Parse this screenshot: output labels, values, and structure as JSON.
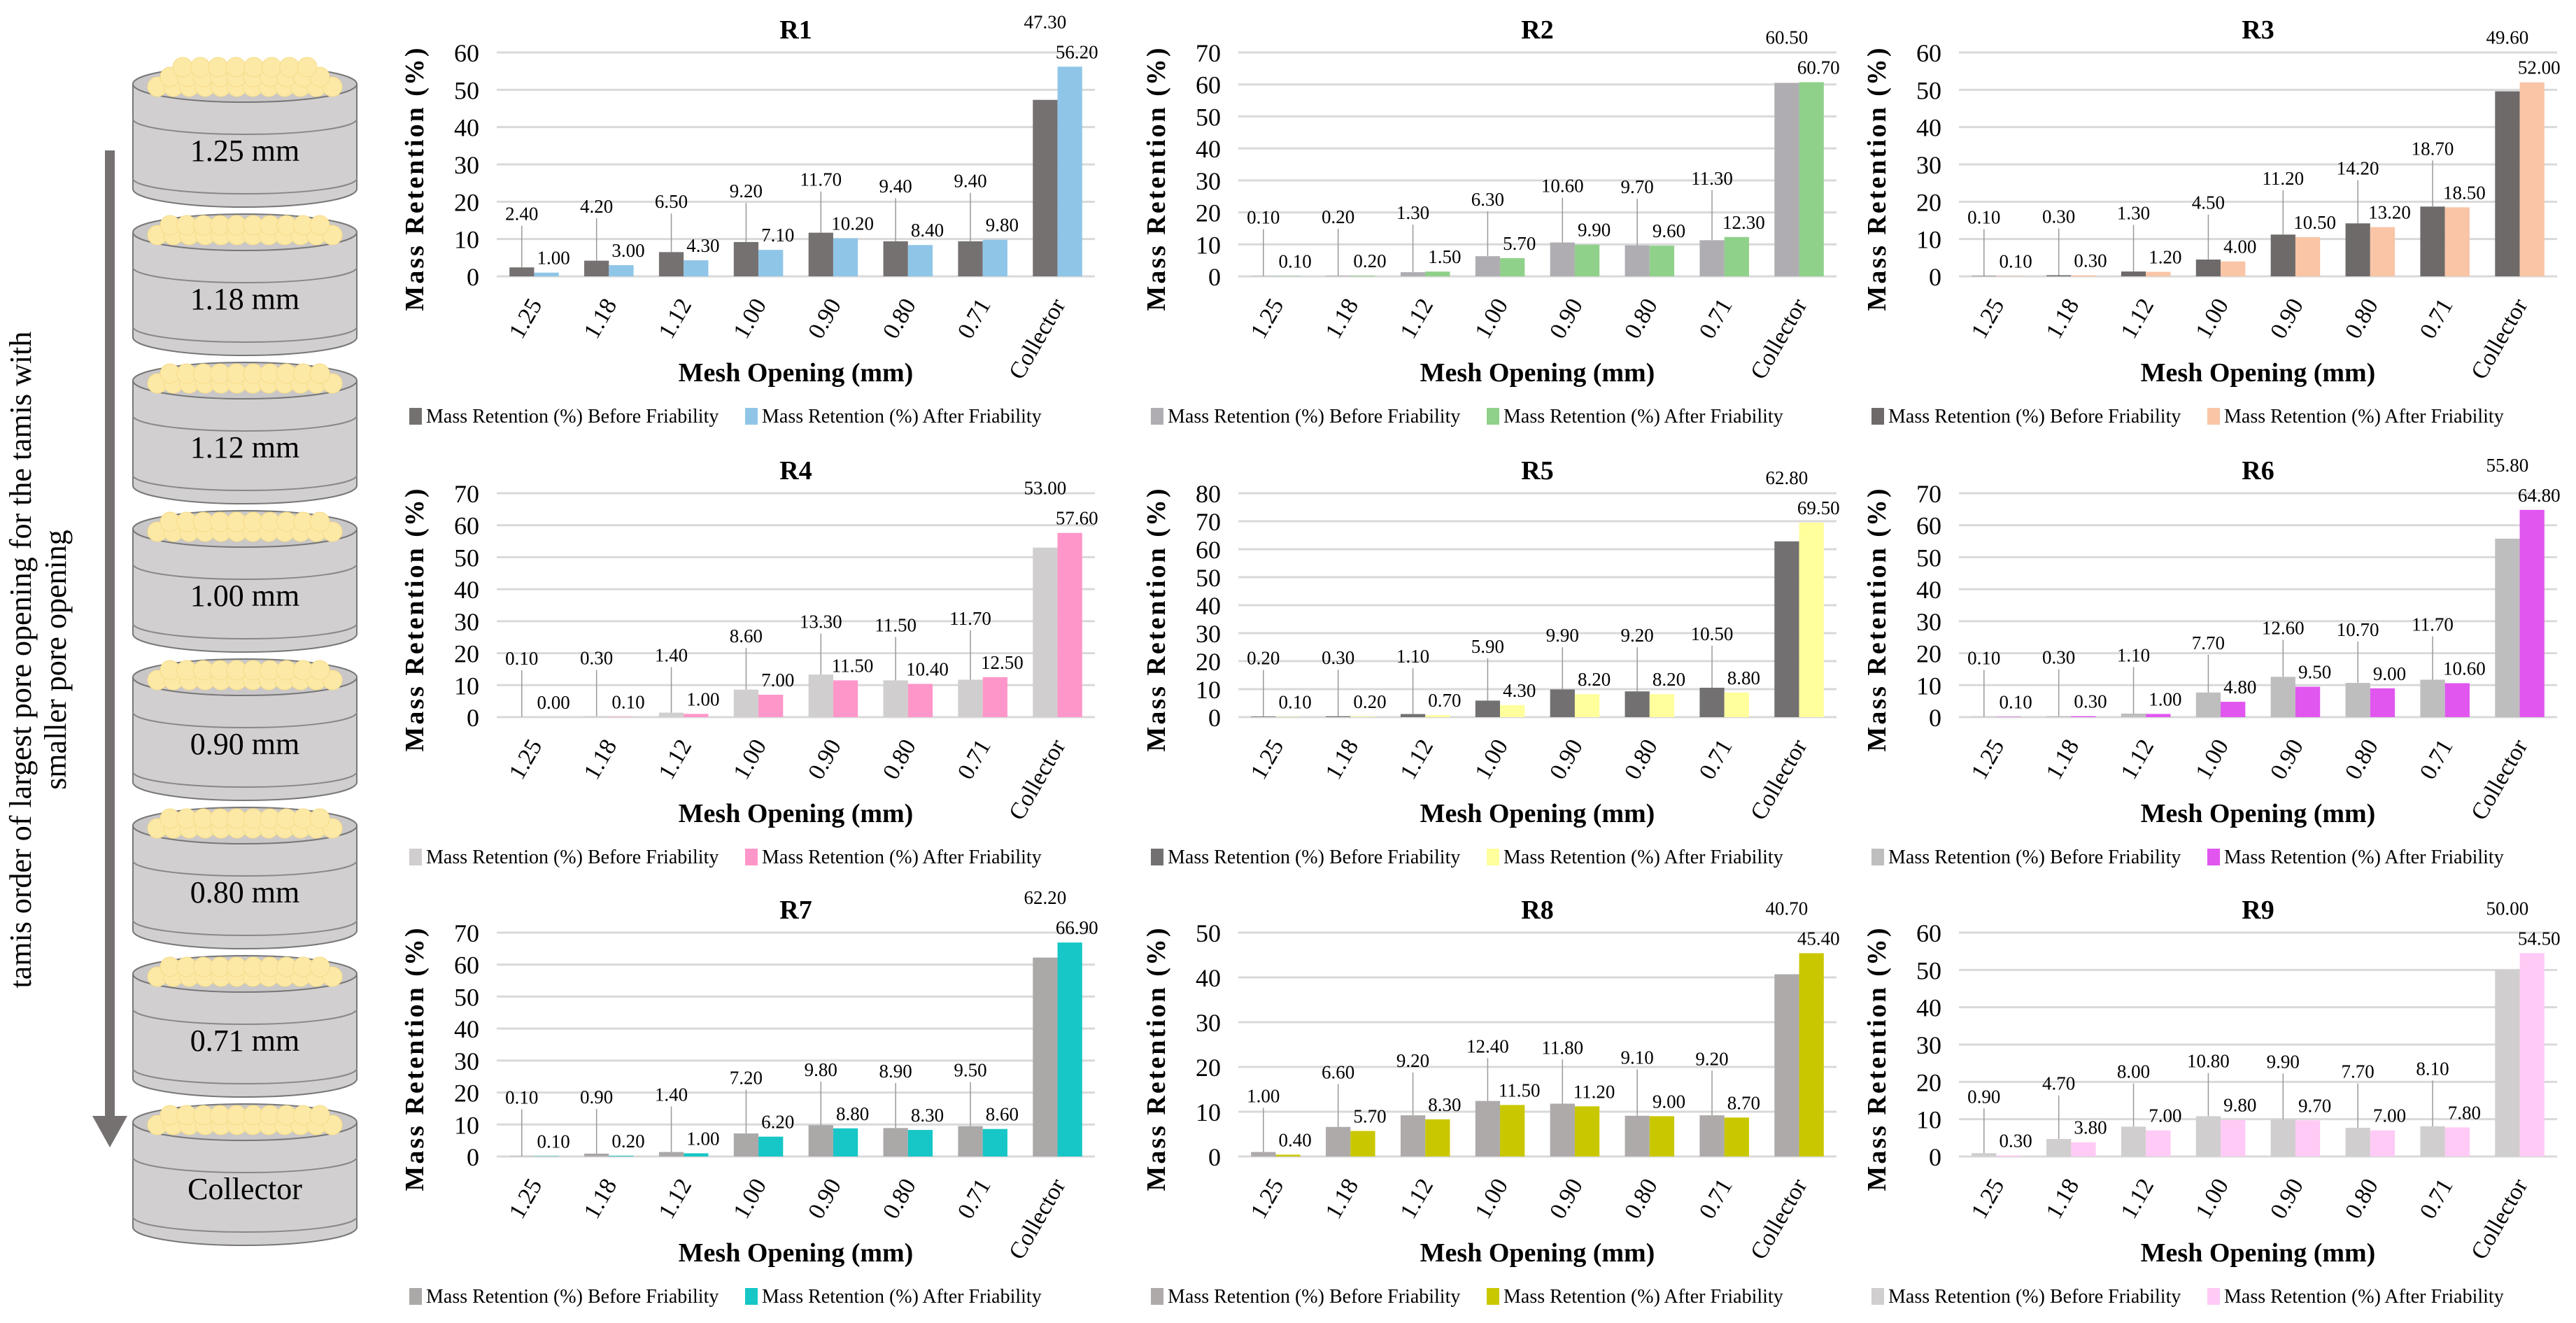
{
  "diagram": {
    "side_label_line1": "tamis order of largest pore opening for the tamis with",
    "side_label_line2": "smaller pore opening",
    "sieves": [
      "1.25 mm",
      "1.18 mm",
      "1.12 mm",
      "1.00 mm",
      "0.90 mm",
      "0.80 mm",
      "0.71 mm",
      "Collector"
    ],
    "sieve_color": "#d1cfd0",
    "bead_color": "#fde9a6",
    "arrow_color": "#767171"
  },
  "chart_data": [
    {
      "type": "bar",
      "title": "R1",
      "xlabel": "Mesh Opening (mm)",
      "ylabel": "Mass Retention (%)",
      "ylim": [
        0,
        60
      ],
      "yticks": [
        0,
        10,
        20,
        30,
        40,
        50,
        60
      ],
      "grid": true,
      "legend": "bottom",
      "categories": [
        "1.25",
        "1.18",
        "1.12",
        "1.00",
        "0.90",
        "0.80",
        "0.71",
        "Collector"
      ],
      "series": [
        {
          "name": "Mass Retention (%) Before Friability",
          "color": "#767171",
          "values": [
            2.4,
            4.2,
            6.5,
            9.2,
            11.7,
            9.4,
            9.4,
            47.3
          ],
          "labels": [
            "2.40",
            "4.20",
            "6.50",
            "9.20",
            "11.70",
            "9.40",
            "9.40",
            "47.30"
          ]
        },
        {
          "name": "Mass Retention (%) After Friability",
          "color": "#8fc6e8",
          "values": [
            1.0,
            3.0,
            4.3,
            7.1,
            10.2,
            8.4,
            9.8,
            56.2
          ],
          "labels": [
            "1.00",
            "3.00",
            "4.30",
            "7.10",
            "10.20",
            "8.40",
            "9.80",
            "56.20"
          ]
        }
      ]
    },
    {
      "type": "bar",
      "title": "R2",
      "xlabel": "Mesh Opening (mm)",
      "ylabel": "Mass Retention (%)",
      "ylim": [
        0,
        70
      ],
      "yticks": [
        0,
        10,
        20,
        30,
        40,
        50,
        60,
        70
      ],
      "grid": true,
      "legend": "bottom",
      "categories": [
        "1.25",
        "1.18",
        "1.12",
        "1.00",
        "0.90",
        "0.80",
        "0.71",
        "Collector"
      ],
      "series": [
        {
          "name": "Mass Retention (%) Before Friability",
          "color": "#b0adb2",
          "values": [
            0.1,
            0.2,
            1.3,
            6.3,
            10.6,
            9.7,
            11.3,
            60.5
          ],
          "labels": [
            "0.10",
            "0.20",
            "1.30",
            "6.30",
            "10.60",
            "9.70",
            "11.30",
            "60.50"
          ]
        },
        {
          "name": "Mass Retention (%) After Friability",
          "color": "#8fd18a",
          "values": [
            0.1,
            0.2,
            1.5,
            5.7,
            9.9,
            9.6,
            12.3,
            60.7
          ],
          "labels": [
            "0.10",
            "0.20",
            "1.50",
            "5.70",
            "9.90",
            "9.60",
            "12.30",
            "60.70"
          ]
        }
      ]
    },
    {
      "type": "bar",
      "title": "R3",
      "xlabel": "Mesh Opening (mm)",
      "ylabel": "Mass Retention (%)",
      "ylim": [
        0,
        60
      ],
      "yticks": [
        0,
        10,
        20,
        30,
        40,
        50,
        60
      ],
      "grid": true,
      "legend": "bottom",
      "categories": [
        "1.25",
        "1.18",
        "1.12",
        "1.00",
        "0.90",
        "0.80",
        "0.71",
        "Collector"
      ],
      "series": [
        {
          "name": "Mass Retention (%) Before Friability",
          "color": "#6e6a6a",
          "values": [
            0.1,
            0.3,
            1.3,
            4.5,
            11.2,
            14.2,
            18.7,
            49.6
          ],
          "labels": [
            "0.10",
            "0.30",
            "1.30",
            "4.50",
            "11.20",
            "14.20",
            "18.70",
            "49.60"
          ]
        },
        {
          "name": "Mass Retention (%) After Friability",
          "color": "#f9c5a6",
          "values": [
            0.1,
            0.3,
            1.2,
            4.0,
            10.5,
            13.2,
            18.5,
            52.0
          ],
          "labels": [
            "0.10",
            "0.30",
            "1.20",
            "4.00",
            "10.50",
            "13.20",
            "18.50",
            "52.00"
          ]
        }
      ]
    },
    {
      "type": "bar",
      "title": "R4",
      "xlabel": "Mesh Opening (mm)",
      "ylabel": "Mass Retention (%)",
      "ylim": [
        0,
        70
      ],
      "yticks": [
        0,
        10,
        20,
        30,
        40,
        50,
        60,
        70
      ],
      "grid": true,
      "legend": "bottom",
      "categories": [
        "1.25",
        "1.18",
        "1.12",
        "1.00",
        "0.90",
        "0.80",
        "0.71",
        "Collector"
      ],
      "series": [
        {
          "name": "Mass Retention (%) Before Friability",
          "color": "#d0cece",
          "values": [
            0.1,
            0.3,
            1.4,
            8.6,
            13.3,
            11.5,
            11.7,
            53.0
          ],
          "labels": [
            "0.10",
            "0.30",
            "1.40",
            "8.60",
            "13.30",
            "11.50",
            "11.70",
            "53.00"
          ]
        },
        {
          "name": "Mass Retention (%) After Friability",
          "color": "#ff96c9",
          "values": [
            0.0,
            0.1,
            1.0,
            7.0,
            11.5,
            10.4,
            12.5,
            57.6
          ],
          "labels": [
            "0.00",
            "0.10",
            "1.00",
            "7.00",
            "11.50",
            "10.40",
            "12.50",
            "57.60"
          ]
        }
      ]
    },
    {
      "type": "bar",
      "title": "R5",
      "xlabel": "Mesh Opening (mm)",
      "ylabel": "Mass Retention (%)",
      "ylim": [
        0,
        80
      ],
      "yticks": [
        0,
        10,
        20,
        30,
        40,
        50,
        60,
        70,
        80
      ],
      "grid": true,
      "legend": "bottom",
      "categories": [
        "1.25",
        "1.18",
        "1.12",
        "1.00",
        "0.90",
        "0.80",
        "0.71",
        "Collector"
      ],
      "series": [
        {
          "name": "Mass Retention (%) Before Friability",
          "color": "#727070",
          "values": [
            0.2,
            0.3,
            1.1,
            5.9,
            9.9,
            9.2,
            10.5,
            62.8
          ],
          "labels": [
            "0.20",
            "0.30",
            "1.10",
            "5.90",
            "9.90",
            "9.20",
            "10.50",
            "62.80"
          ]
        },
        {
          "name": "Mass Retention (%) After Friability",
          "color": "#ffff9c",
          "values": [
            0.1,
            0.2,
            0.7,
            4.3,
            8.2,
            8.2,
            8.8,
            69.5
          ],
          "labels": [
            "0.10",
            "0.20",
            "0.70",
            "4.30",
            "8.20",
            "8.20",
            "8.80",
            "69.50"
          ]
        }
      ]
    },
    {
      "type": "bar",
      "title": "R6",
      "xlabel": "Mesh Opening (mm)",
      "ylabel": "Mass Retention (%)",
      "ylim": [
        0,
        70
      ],
      "yticks": [
        0,
        10,
        20,
        30,
        40,
        50,
        60,
        70
      ],
      "grid": true,
      "legend": "bottom",
      "categories": [
        "1.25",
        "1.18",
        "1.12",
        "1.00",
        "0.90",
        "0.80",
        "0.71",
        "Collector"
      ],
      "series": [
        {
          "name": "Mass Retention (%) Before Friability",
          "color": "#bfbebe",
          "values": [
            0.1,
            0.3,
            1.1,
            7.7,
            12.6,
            10.7,
            11.7,
            55.8
          ],
          "labels": [
            "0.10",
            "0.30",
            "1.10",
            "7.70",
            "12.60",
            "10.70",
            "11.70",
            "55.80"
          ]
        },
        {
          "name": "Mass Retention (%) After Friability",
          "color": "#e056ef",
          "values": [
            0.1,
            0.3,
            1.0,
            4.8,
            9.5,
            9.0,
            10.6,
            64.8
          ],
          "labels": [
            "0.10",
            "0.30",
            "1.00",
            "4.80",
            "9.50",
            "9.00",
            "10.60",
            "64.80"
          ]
        }
      ]
    },
    {
      "type": "bar",
      "title": "R7",
      "xlabel": "Mesh Opening (mm)",
      "ylabel": "Mass Retention (%)",
      "ylim": [
        0,
        70
      ],
      "yticks": [
        0,
        10,
        20,
        30,
        40,
        50,
        60,
        70
      ],
      "grid": true,
      "legend": "bottom",
      "categories": [
        "1.25",
        "1.18",
        "1.12",
        "1.00",
        "0.90",
        "0.80",
        "0.71",
        "Collector"
      ],
      "series": [
        {
          "name": "Mass Retention (%) Before Friability",
          "color": "#aba8a8",
          "values": [
            0.1,
            0.9,
            1.4,
            7.2,
            9.8,
            8.9,
            9.5,
            62.2
          ],
          "labels": [
            "0.10",
            "0.90",
            "1.40",
            "7.20",
            "9.80",
            "8.90",
            "9.50",
            "62.20"
          ]
        },
        {
          "name": "Mass Retention (%) After Friability",
          "color": "#17c6c6",
          "values": [
            0.1,
            0.2,
            1.0,
            6.2,
            8.8,
            8.3,
            8.6,
            66.9
          ],
          "labels": [
            "0.10",
            "0.20",
            "1.00",
            "6.20",
            "8.80",
            "8.30",
            "8.60",
            "66.90"
          ]
        }
      ]
    },
    {
      "type": "bar",
      "title": "R8",
      "xlabel": "Mesh Opening (mm)",
      "ylabel": "Mass Retention (%)",
      "ylim": [
        0,
        50
      ],
      "yticks": [
        0,
        10,
        20,
        30,
        40,
        50
      ],
      "grid": true,
      "legend": "bottom",
      "categories": [
        "1.25",
        "1.18",
        "1.12",
        "1.00",
        "0.90",
        "0.80",
        "0.71",
        "Collector"
      ],
      "series": [
        {
          "name": "Mass Retention (%) Before Friability",
          "color": "#aeaaaa",
          "values": [
            1.0,
            6.6,
            9.2,
            12.4,
            11.8,
            9.1,
            9.2,
            40.7
          ],
          "labels": [
            "1.00",
            "6.60",
            "9.20",
            "12.40",
            "11.80",
            "9.10",
            "9.20",
            "40.70"
          ]
        },
        {
          "name": "Mass Retention (%) After Friability",
          "color": "#c9c800",
          "values": [
            0.4,
            5.7,
            8.3,
            11.5,
            11.2,
            9.0,
            8.7,
            45.4
          ],
          "labels": [
            "0.40",
            "5.70",
            "8.30",
            "11.50",
            "11.20",
            "9.00",
            "8.70",
            "45.40"
          ]
        }
      ]
    },
    {
      "type": "bar",
      "title": "R9",
      "xlabel": "Mesh Opening (mm)",
      "ylabel": "Mass Retention (%)",
      "ylim": [
        0,
        60
      ],
      "yticks": [
        0,
        10,
        20,
        30,
        40,
        50,
        60
      ],
      "grid": true,
      "legend": "bottom",
      "categories": [
        "1.25",
        "1.18",
        "1.12",
        "1.00",
        "0.90",
        "0.80",
        "0.71",
        "Collector"
      ],
      "series": [
        {
          "name": "Mass Retention (%) Before Friability",
          "color": "#d0cece",
          "values": [
            0.9,
            4.7,
            8.0,
            10.8,
            9.9,
            7.7,
            8.1,
            50.0
          ],
          "labels": [
            "0.90",
            "4.70",
            "8.00",
            "10.80",
            "9.90",
            "7.70",
            "8.10",
            "50.00"
          ]
        },
        {
          "name": "Mass Retention (%) After Friability",
          "color": "#ffcaf5",
          "values": [
            0.3,
            3.8,
            7.0,
            9.8,
            9.7,
            7.0,
            7.8,
            54.5
          ],
          "labels": [
            "0.30",
            "3.80",
            "7.00",
            "9.80",
            "9.70",
            "7.00",
            "7.80",
            "54.50"
          ]
        }
      ]
    }
  ]
}
